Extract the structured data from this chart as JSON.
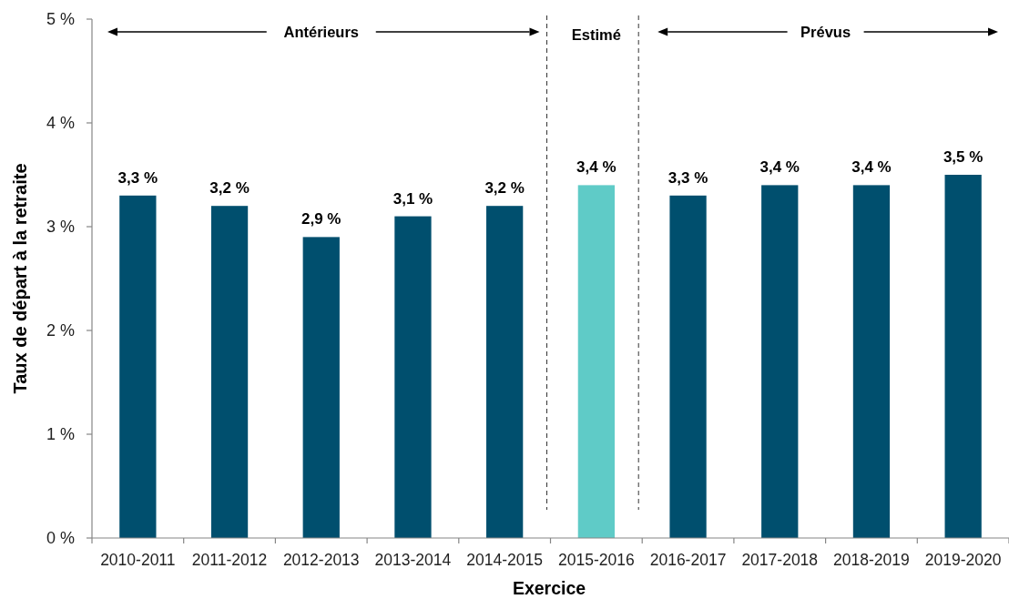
{
  "chart_data": {
    "type": "bar",
    "xlabel": "Exercice",
    "ylabel": "Taux de départ à la retraite",
    "categories": [
      "2010-2011",
      "2011-2012",
      "2012-2013",
      "2013-2014",
      "2014-2015",
      "2015-2016",
      "2016-2017",
      "2017-2018",
      "2018-2019",
      "2019-2020"
    ],
    "values": [
      3.3,
      3.2,
      2.9,
      3.1,
      3.2,
      3.4,
      3.3,
      3.4,
      3.4,
      3.5
    ],
    "value_labels": [
      "3,3 %",
      "3,2 %",
      "2,9 %",
      "3,1 %",
      "3,2 %",
      "3,4 %",
      "3,3 %",
      "3,4 %",
      "3,4 %",
      "3,5 %"
    ],
    "colors": [
      "#004f6e",
      "#004f6e",
      "#004f6e",
      "#004f6e",
      "#004f6e",
      "#5fcbc7",
      "#004f6e",
      "#004f6e",
      "#004f6e",
      "#004f6e"
    ],
    "ylim": [
      0,
      5
    ],
    "yticks": [
      {
        "value": 0,
        "label": "0 %"
      },
      {
        "value": 1,
        "label": "1 %"
      },
      {
        "value": 2,
        "label": "2 %"
      },
      {
        "value": 3,
        "label": "3 %"
      },
      {
        "value": 4,
        "label": "4 %"
      },
      {
        "value": 5,
        "label": "5 %"
      }
    ],
    "annotations": [
      "Antérieurs",
      "Estimé",
      "Prévus"
    ],
    "grid": false
  }
}
